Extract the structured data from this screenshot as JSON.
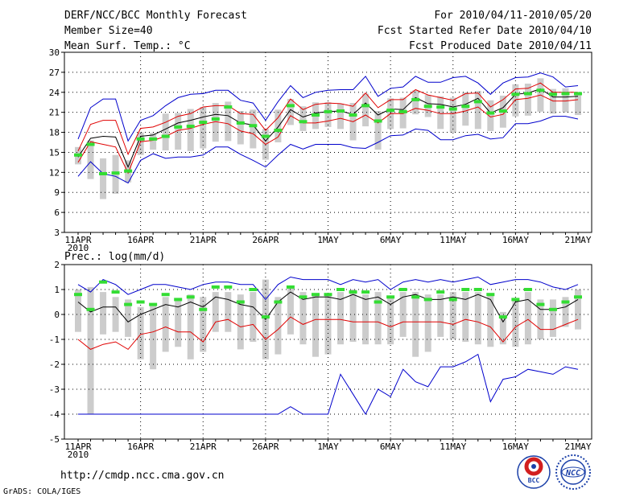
{
  "header": {
    "title": "DERF/NCC/BCC Monthly Forecast",
    "member_size": "Member Size=40",
    "variable": "Mean Surf. Temp.: °C",
    "for_range": "For 2010/04/11-2010/05/20",
    "started": "Fcst Started Refer Date 2010/04/10",
    "produced": "Fcst Produced Date 2010/04/11"
  },
  "footer": {
    "url": "http://cmdp.ncc.cma.gov.cn",
    "grads": "GrADS: COLA/IGES",
    "logo_bcc": "BCC",
    "logo_ncc": "NCC"
  },
  "colors": {
    "mean": "#000000",
    "spread": "#e00000",
    "envelope": "#0000cc",
    "box": "#cccccc",
    "obs": "#33dd33",
    "grid": "#000000"
  },
  "chart_data": [
    {
      "type": "line",
      "title": "Mean Surf. Temp.: °C",
      "ylim": [
        3,
        30
      ],
      "yticks": [
        3,
        6,
        9,
        12,
        15,
        18,
        21,
        24,
        27,
        30
      ],
      "xlabels": [
        {
          "day": 0,
          "label": "11APR",
          "sub": "2010"
        },
        {
          "day": 5,
          "label": "16APR"
        },
        {
          "day": 10,
          "label": "21APR"
        },
        {
          "day": 15,
          "label": "26APR"
        },
        {
          "day": 20,
          "label": "1MAY"
        },
        {
          "day": 25,
          "label": "6MAY"
        },
        {
          "day": 30,
          "label": "11MAY"
        },
        {
          "day": 35,
          "label": "16MAY"
        },
        {
          "day": 40,
          "label": "21MAY"
        }
      ],
      "days": 40,
      "series": [
        {
          "name": "upper envelope",
          "color_key": "envelope",
          "values": [
            17,
            21.7,
            23,
            23,
            16.7,
            19.8,
            20.5,
            22,
            23.2,
            23.7,
            23.8,
            24.3,
            24.3,
            22.8,
            22.4,
            19.8,
            22.6,
            25,
            23.2,
            24,
            24.3,
            24.4,
            24.4,
            26.4,
            23.4,
            24.6,
            24.8,
            26.4,
            25.5,
            25.5,
            26.2,
            26.4,
            25.4,
            23.7,
            25.4,
            26.2,
            26.3,
            26.9,
            26.3,
            24.8,
            25
          ]
        },
        {
          "name": "lower envelope",
          "color_key": "envelope",
          "values": [
            11.4,
            13.6,
            11.8,
            11.4,
            10.4,
            13.8,
            14.8,
            14.1,
            14.3,
            14.3,
            14.6,
            15.8,
            15.8,
            14.7,
            13.8,
            12.8,
            14.6,
            16.2,
            15.5,
            16.2,
            16.2,
            16.2,
            15.7,
            15.6,
            16.5,
            17.5,
            17.6,
            18.5,
            18.3,
            16.9,
            16.9,
            17.5,
            17.7,
            17,
            17.2,
            19.3,
            19.3,
            19.7,
            20.4,
            20.4,
            20
          ]
        },
        {
          "name": "upper spread",
          "color_key": "spread",
          "values": [
            15.2,
            19.2,
            19.8,
            19.8,
            14.7,
            18.6,
            18.8,
            19.5,
            20.4,
            20.8,
            21.8,
            22,
            22,
            20.8,
            20.7,
            18.3,
            20.2,
            23,
            21.4,
            22.2,
            22.4,
            22.3,
            21.9,
            23.9,
            21.7,
            22.9,
            22.9,
            24.4,
            23.6,
            23.2,
            22.8,
            23.8,
            23.9,
            21.8,
            22.9,
            24.5,
            24.6,
            25.4,
            24,
            24,
            24
          ]
        },
        {
          "name": "ensemble mean",
          "color_key": "mean",
          "values": [
            14.3,
            17.1,
            17.4,
            17.3,
            12.8,
            17.4,
            17.6,
            18.5,
            19.4,
            19.8,
            20.3,
            20.7,
            20.5,
            19.4,
            19.1,
            16.7,
            18.8,
            21.4,
            20.3,
            20.9,
            21.1,
            21.2,
            20.7,
            22.4,
            20.6,
            21.5,
            21.4,
            23.2,
            22.3,
            22.2,
            21.8,
            22.2,
            23.1,
            20.9,
            21.7,
            23.7,
            23.9,
            24.5,
            23.3,
            23.3,
            23.4
          ]
        },
        {
          "name": "lower spread",
          "color_key": "spread",
          "values": [
            13.5,
            16.6,
            16.2,
            15.8,
            11.9,
            16.6,
            16.8,
            17.4,
            18.3,
            18.6,
            19.2,
            19.6,
            19.3,
            18.2,
            17.8,
            16.2,
            17.3,
            20.5,
            19.4,
            19.4,
            19.7,
            20.1,
            19.6,
            20.6,
            19.4,
            20.8,
            20.8,
            21.6,
            21.3,
            20.8,
            20.8,
            21.2,
            21.8,
            20.3,
            20.7,
            22.9,
            23.1,
            23.6,
            22.7,
            22.7,
            22.9
          ]
        }
      ],
      "box_high": [
        15.8,
        16.8,
        14.1,
        14.6,
        13.8,
        18,
        17.9,
        20.8,
        20.9,
        21.5,
        21.8,
        22.4,
        22.6,
        21.2,
        21.4,
        18.5,
        21.4,
        23,
        21.9,
        22.5,
        22.5,
        22.3,
        22.4,
        23.8,
        21.2,
        23.1,
        23.2,
        24.3,
        23.6,
        23.4,
        23.2,
        24,
        24.2,
        22.8,
        23.5,
        25.2,
        25.3,
        26.1,
        24.5,
        24.6,
        24
      ],
      "box_low": [
        13.2,
        11,
        8,
        8.8,
        10.5,
        14.6,
        15.4,
        15.3,
        15.4,
        15.2,
        15.6,
        16.6,
        16.7,
        16.2,
        15.6,
        13.9,
        16.5,
        19.1,
        18.2,
        18.5,
        18.8,
        18.5,
        16.8,
        18.9,
        15.4,
        18.5,
        18.6,
        20.7,
        20.3,
        18.5,
        18,
        19,
        18.5,
        18.2,
        18.7,
        20.4,
        20.5,
        21.1,
        20.8,
        21,
        20.6
      ],
      "obs": [
        14.6,
        16.2,
        11.8,
        11.9,
        12.2,
        17,
        17,
        17.4,
        18.8,
        18.9,
        19.5,
        20,
        21.8,
        19.4,
        19,
        17.4,
        18.3,
        22,
        19.6,
        20.6,
        21.1,
        21.2,
        20.6,
        22,
        19.7,
        21.3,
        21.1,
        22.9,
        21.9,
        21.8,
        21.5,
        21.9,
        22.6,
        20.9,
        21.2,
        23.7,
        23.8,
        24.3,
        23.7,
        23.8,
        23.8
      ]
    },
    {
      "type": "line",
      "title": "Prec.: log(mm/d)",
      "ylim": [
        -5,
        2
      ],
      "yticks": [
        -5,
        -4,
        -3,
        -2,
        -1,
        0,
        1,
        2
      ],
      "xlabels": [
        {
          "day": 0,
          "label": "11APR",
          "sub": "2010"
        },
        {
          "day": 5,
          "label": "16APR"
        },
        {
          "day": 10,
          "label": "21APR"
        },
        {
          "day": 15,
          "label": "26APR"
        },
        {
          "day": 20,
          "label": "1MAY"
        },
        {
          "day": 25,
          "label": "6MAY"
        },
        {
          "day": 30,
          "label": "11MAY"
        },
        {
          "day": 35,
          "label": "16MAY"
        },
        {
          "day": 40,
          "label": "21MAY"
        }
      ],
      "days": 40,
      "series": [
        {
          "name": "upper envelope",
          "color_key": "envelope",
          "values": [
            1.2,
            0.9,
            1.4,
            1.2,
            0.8,
            1.0,
            1.2,
            1.2,
            1.1,
            1.0,
            1.2,
            1.3,
            1.3,
            1.2,
            1.2,
            0.6,
            1.2,
            1.5,
            1.4,
            1.4,
            1.4,
            1.2,
            1.4,
            1.3,
            1.4,
            1.0,
            1.3,
            1.4,
            1.3,
            1.4,
            1.3,
            1.4,
            1.5,
            1.2,
            1.3,
            1.4,
            1.4,
            1.3,
            1.1,
            1.0,
            1.2
          ]
        },
        {
          "name": "ensemble mean",
          "color_key": "mean",
          "values": [
            0.5,
            0.1,
            0.3,
            0.3,
            -0.3,
            0.0,
            0.2,
            0.4,
            0.3,
            0.5,
            0.3,
            0.7,
            0.6,
            0.4,
            0.3,
            -0.2,
            0.5,
            0.9,
            0.6,
            0.7,
            0.7,
            0.6,
            0.8,
            0.6,
            0.7,
            0.4,
            0.7,
            0.8,
            0.6,
            0.6,
            0.7,
            0.6,
            0.8,
            0.6,
            -0.3,
            0.5,
            0.6,
            0.2,
            0.2,
            0.3,
            0.6
          ]
        },
        {
          "name": "lower spread",
          "color_key": "spread",
          "values": [
            -1.0,
            -1.4,
            -1.2,
            -1.1,
            -1.4,
            -0.8,
            -0.7,
            -0.5,
            -0.7,
            -0.7,
            -1.1,
            -0.3,
            -0.2,
            -0.5,
            -0.4,
            -1.0,
            -0.6,
            -0.1,
            -0.4,
            -0.2,
            -0.2,
            -0.2,
            -0.3,
            -0.3,
            -0.3,
            -0.5,
            -0.3,
            -0.3,
            -0.3,
            -0.3,
            -0.4,
            -0.2,
            -0.3,
            -0.5,
            -1.1,
            -0.5,
            -0.2,
            -0.6,
            -0.6,
            -0.4,
            -0.2
          ]
        },
        {
          "name": "lower envelope",
          "color_key": "envelope",
          "values": [
            -4,
            -4,
            -4,
            -4,
            -4,
            -4,
            -4,
            -4,
            -4,
            -4,
            -4,
            -4,
            -4,
            -4,
            -4,
            -4,
            -4,
            -3.7,
            -4,
            -4,
            -4,
            -2.4,
            -3.2,
            -4,
            -3.0,
            -3.3,
            -2.2,
            -2.7,
            -2.9,
            -2.1,
            -2.1,
            -1.9,
            -1.6,
            -3.5,
            -2.6,
            -2.5,
            -2.2,
            -2.3,
            -2.4,
            -2.1,
            -2.2
          ]
        }
      ],
      "box_high": [
        1.0,
        1.1,
        0.9,
        0.7,
        0.6,
        0.3,
        0.4,
        0.7,
        0.6,
        0.8,
        0.7,
        0.9,
        0.9,
        0.8,
        0.9,
        1.4,
        0.7,
        1.1,
        0.9,
        0.8,
        0.8,
        0.9,
        1.0,
        0.8,
        0.9,
        0.7,
        0.9,
        0.9,
        0.8,
        0.8,
        0.9,
        0.9,
        0.9,
        0.8,
        0.1,
        0.6,
        0.9,
        0.6,
        0.6,
        0.7,
        1.0
      ],
      "box_low": [
        -0.7,
        -4,
        -0.8,
        -0.7,
        -0.9,
        -1.8,
        -2.2,
        -1.5,
        -1.3,
        -1.8,
        -1.5,
        -0.7,
        -0.7,
        -1.4,
        -1.1,
        -1.8,
        -1.6,
        -0.8,
        -1.2,
        -1.7,
        -1.6,
        -1.2,
        -1.1,
        -1.2,
        -1.2,
        -1.2,
        -0.9,
        -1.7,
        -1.5,
        -0.9,
        -1.0,
        -1.1,
        -1.2,
        -1.3,
        -1.2,
        -1.3,
        -1.2,
        -1.0,
        -0.9,
        -0.5,
        -0.6
      ],
      "obs": [
        0.8,
        0.2,
        1.3,
        0.9,
        0.4,
        0.5,
        0.4,
        0.8,
        0.6,
        0.7,
        0.2,
        1.1,
        1.1,
        0.5,
        1.0,
        -0.1,
        0.5,
        1.1,
        0.7,
        0.8,
        0.8,
        1.0,
        0.9,
        0.9,
        0.5,
        0.7,
        1.0,
        0.7,
        0.6,
        0.9,
        0.6,
        1.0,
        1.0,
        0.8,
        -0.1,
        0.6,
        1.0,
        0.4,
        0.2,
        0.5,
        0.7
      ]
    }
  ]
}
